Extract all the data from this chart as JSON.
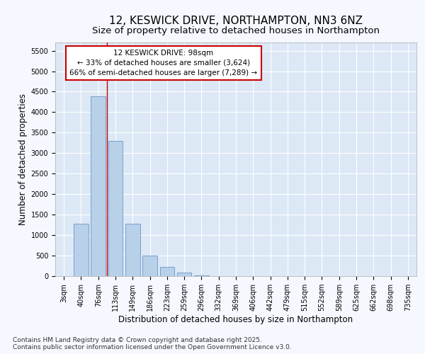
{
  "title_line1": "12, KESWICK DRIVE, NORTHAMPTON, NN3 6NZ",
  "title_line2": "Size of property relative to detached houses in Northampton",
  "xlabel": "Distribution of detached houses by size in Northampton",
  "ylabel": "Number of detached properties",
  "bins": [
    "3sqm",
    "40sqm",
    "76sqm",
    "113sqm",
    "149sqm",
    "186sqm",
    "223sqm",
    "259sqm",
    "296sqm",
    "332sqm",
    "369sqm",
    "406sqm",
    "442sqm",
    "479sqm",
    "515sqm",
    "552sqm",
    "589sqm",
    "625sqm",
    "662sqm",
    "698sqm",
    "735sqm"
  ],
  "values": [
    0,
    1280,
    4380,
    3300,
    1280,
    500,
    220,
    80,
    20,
    5,
    0,
    0,
    0,
    0,
    0,
    0,
    0,
    0,
    0,
    0,
    0
  ],
  "bar_color": "#b8d0e8",
  "bar_edge_color": "#6699cc",
  "background_color": "#dce8f5",
  "grid_color": "#ffffff",
  "red_line_x": 2.5,
  "annotation_line1": "12 KESWICK DRIVE: 98sqm",
  "annotation_line2": "← 33% of detached houses are smaller (3,624)",
  "annotation_line3": "66% of semi-detached houses are larger (7,289) →",
  "annotation_box_color": "#ffffff",
  "annotation_box_edge": "#cc0000",
  "ylim": [
    0,
    5700
  ],
  "yticks": [
    0,
    500,
    1000,
    1500,
    2000,
    2500,
    3000,
    3500,
    4000,
    4500,
    5000,
    5500
  ],
  "footer_line1": "Contains HM Land Registry data © Crown copyright and database right 2025.",
  "footer_line2": "Contains public sector information licensed under the Open Government Licence v3.0.",
  "title_fontsize": 11,
  "subtitle_fontsize": 9.5,
  "axis_label_fontsize": 8.5,
  "tick_fontsize": 7,
  "annotation_fontsize": 7.5,
  "footer_fontsize": 6.5,
  "fig_bg": "#f5f8ff"
}
